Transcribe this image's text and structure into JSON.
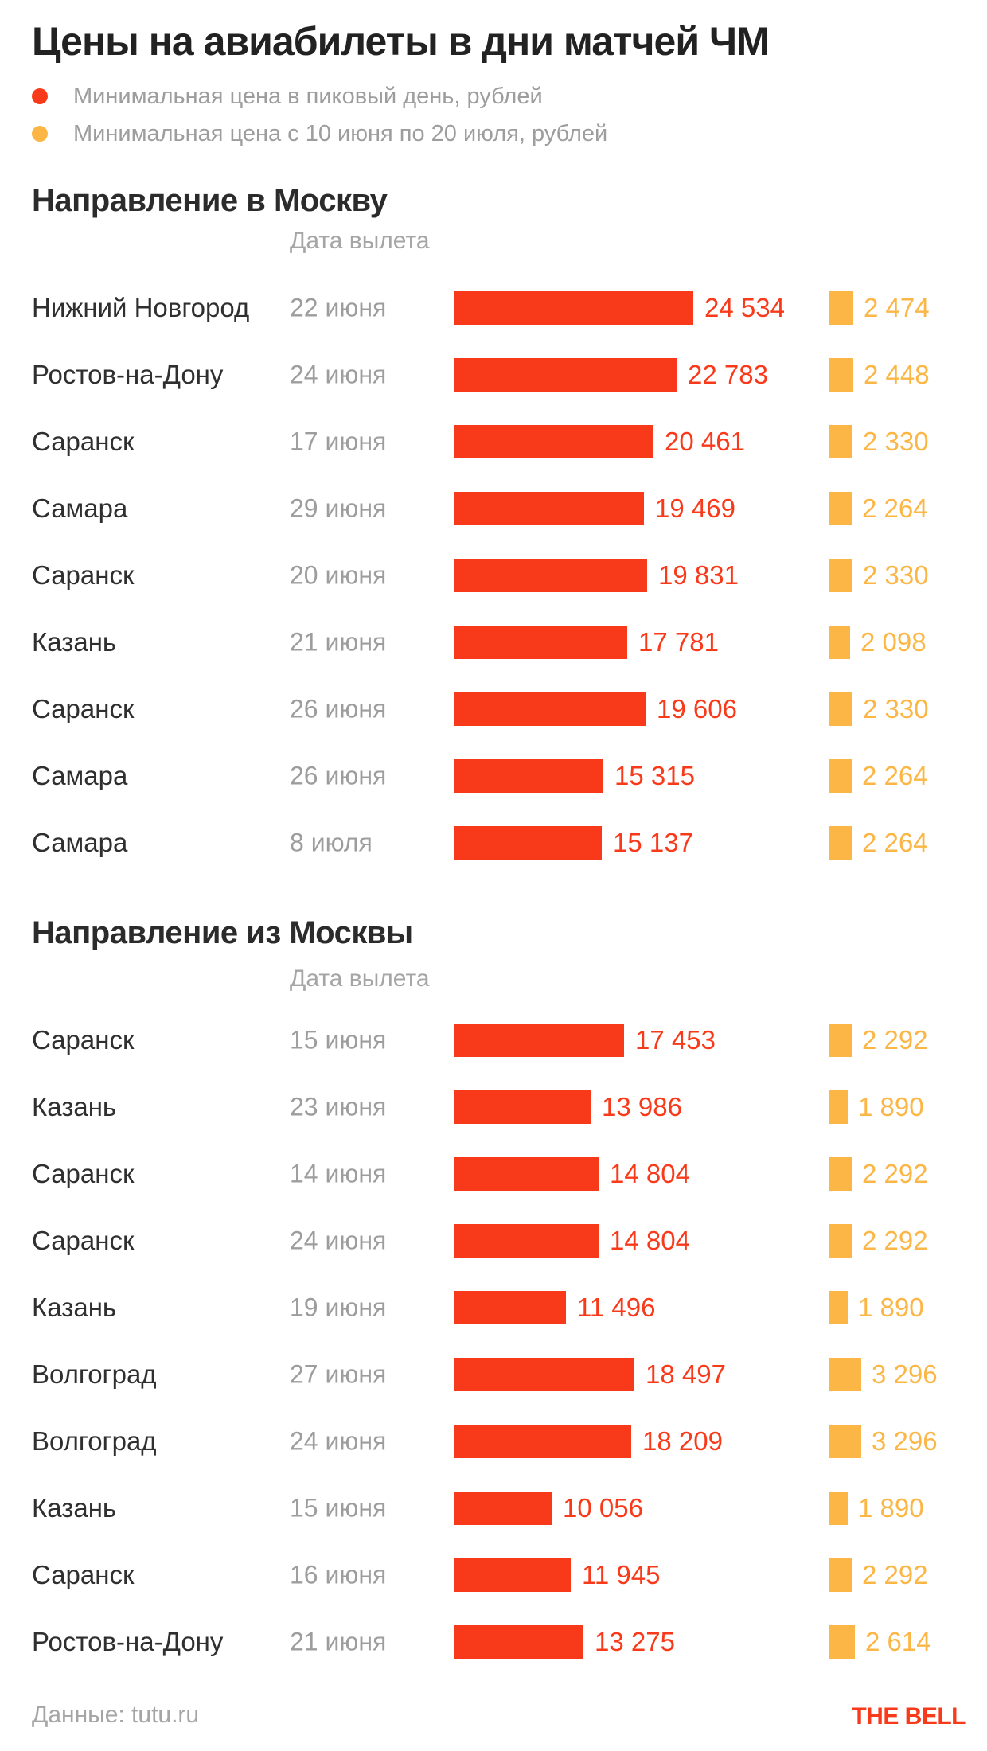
{
  "title": "Цены на авиабилеты в дни матчей ЧМ",
  "legend": [
    {
      "label": "Минимальная цена в пиковый день, рублей",
      "color": "#f93a1a"
    },
    {
      "label": "Минимальная цена с 10 июня по 20 июля, рублей",
      "color": "#fbb645"
    }
  ],
  "colors": {
    "peak_series": "#f93a1a",
    "period_series": "#fbb645",
    "dark_text": "#2f2f2f",
    "gray_text": "#9d9d9d",
    "background": "#ffffff"
  },
  "footer": {
    "source": "Данные: tutu.ru",
    "brand": "THE BELL"
  },
  "chart_data": [
    {
      "type": "bar",
      "title": "Направление в Москву",
      "column_header": "Дата вылета",
      "series_names": [
        "Минимальная цена в пиковый день, рублей",
        "Минимальная цена с 10 июня по 20 июля, рублей"
      ],
      "xlim": [
        0,
        24534
      ],
      "rows": [
        {
          "city": "Нижний Новгород",
          "date": "22 июня",
          "peak": 24534,
          "peak_label": "24 534",
          "period": 2474,
          "period_label": "2 474"
        },
        {
          "city": "Ростов-на-Дону",
          "date": "24 июня",
          "peak": 22783,
          "peak_label": "22 783",
          "period": 2448,
          "period_label": "2 448"
        },
        {
          "city": "Саранск",
          "date": "17 июня",
          "peak": 20461,
          "peak_label": "20 461",
          "period": 2330,
          "period_label": "2 330"
        },
        {
          "city": "Самара",
          "date": "29 июня",
          "peak": 19469,
          "peak_label": "19 469",
          "period": 2264,
          "period_label": "2 264"
        },
        {
          "city": "Саранск",
          "date": "20 июня",
          "peak": 19831,
          "peak_label": "19 831",
          "period": 2330,
          "period_label": "2 330"
        },
        {
          "city": "Казань",
          "date": "21 июня",
          "peak": 17781,
          "peak_label": "17 781",
          "period": 2098,
          "period_label": "2 098"
        },
        {
          "city": "Саранск",
          "date": "26 июня",
          "peak": 19606,
          "peak_label": "19 606",
          "period": 2330,
          "period_label": "2 330"
        },
        {
          "city": "Самара",
          "date": "26 июня",
          "peak": 15315,
          "peak_label": "15 315",
          "period": 2264,
          "period_label": "2 264"
        },
        {
          "city": "Самара",
          "date": "8 июля",
          "peak": 15137,
          "peak_label": "15 137",
          "period": 2264,
          "period_label": "2 264"
        }
      ]
    },
    {
      "type": "bar",
      "title": "Направление из Москвы",
      "column_header": "Дата вылета",
      "series_names": [
        "Минимальная цена в пиковый день, рублей",
        "Минимальная цена с 10 июня по 20 июля, рублей"
      ],
      "xlim": [
        0,
        24534
      ],
      "rows": [
        {
          "city": "Саранск",
          "date": "15 июня",
          "peak": 17453,
          "peak_label": "17 453",
          "period": 2292,
          "period_label": "2 292"
        },
        {
          "city": "Казань",
          "date": "23 июня",
          "peak": 13986,
          "peak_label": "13 986",
          "period": 1890,
          "period_label": "1 890"
        },
        {
          "city": "Саранск",
          "date": "14 июня",
          "peak": 14804,
          "peak_label": "14 804",
          "period": 2292,
          "period_label": "2 292"
        },
        {
          "city": "Саранск",
          "date": "24 июня",
          "peak": 14804,
          "peak_label": "14 804",
          "period": 2292,
          "period_label": "2 292"
        },
        {
          "city": "Казань",
          "date": "19 июня",
          "peak": 11496,
          "peak_label": "11 496",
          "period": 1890,
          "period_label": "1 890"
        },
        {
          "city": "Волгоград",
          "date": "27 июня",
          "peak": 18497,
          "peak_label": "18 497",
          "period": 3296,
          "period_label": "3 296"
        },
        {
          "city": "Волгоград",
          "date": "24 июня",
          "peak": 18209,
          "peak_label": "18 209",
          "period": 3296,
          "period_label": "3 296"
        },
        {
          "city": "Казань",
          "date": "15 июня",
          "peak": 10056,
          "peak_label": "10 056",
          "period": 1890,
          "period_label": "1 890"
        },
        {
          "city": "Саранск",
          "date": "16 июня",
          "peak": 11945,
          "peak_label": "11 945",
          "period": 2292,
          "period_label": "2 292"
        },
        {
          "city": "Ростов-на-Дону",
          "date": "21 июня",
          "peak": 13275,
          "peak_label": "13 275",
          "period": 2614,
          "period_label": "2 614"
        }
      ]
    }
  ]
}
